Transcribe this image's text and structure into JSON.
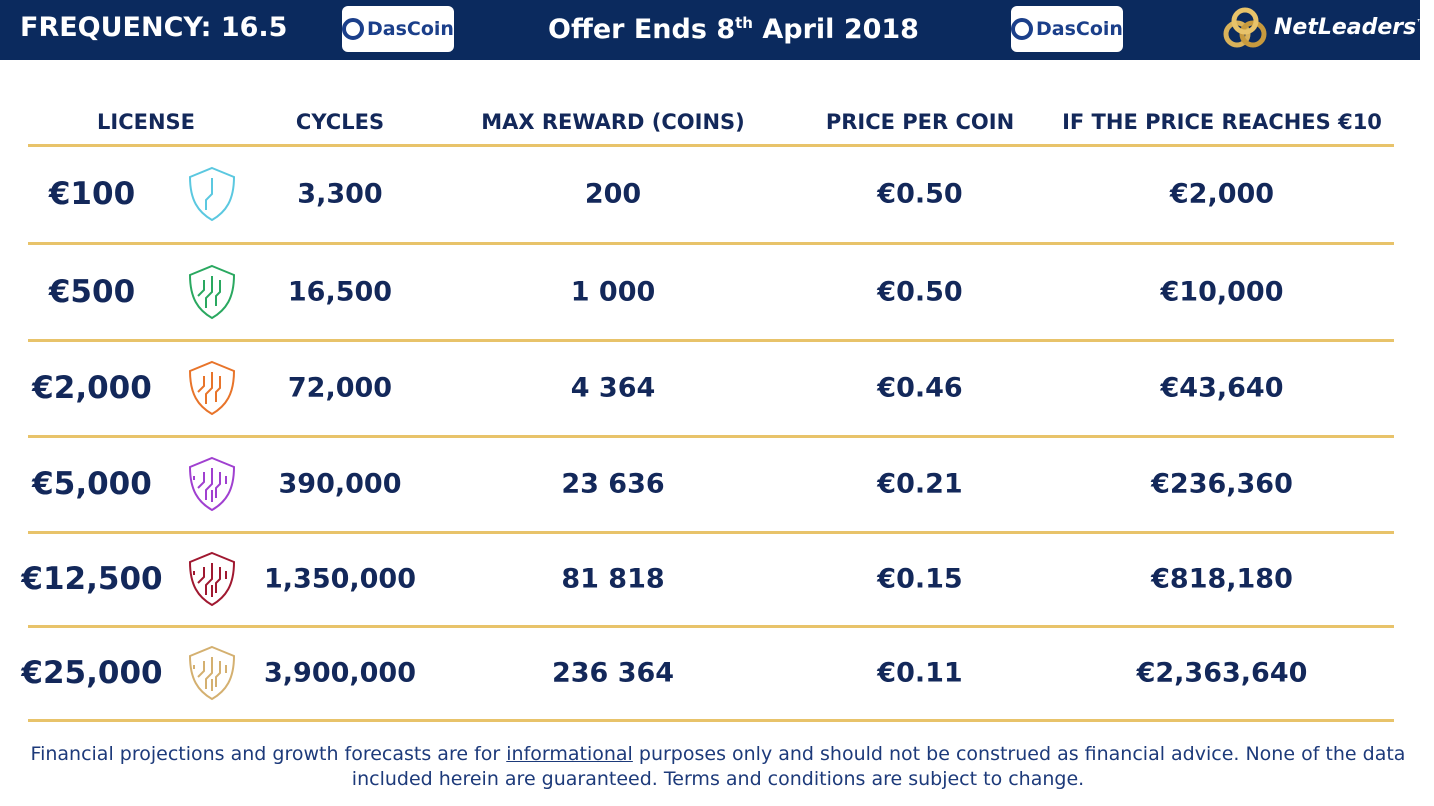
{
  "header": {
    "frequency": "FREQUENCY: 16.5",
    "logo_left": "DasCoin",
    "offer_prefix": "Offer Ends 8",
    "offer_sup": "th",
    "offer_suffix": "April 2018",
    "logo_right": "DasCoin",
    "brand": "NetLeaders",
    "brand_mark": "™"
  },
  "table": {
    "columns": [
      "LICENSE",
      "CYCLES",
      "MAX REWARD (COINS)",
      "PRICE PER COIN",
      "IF THE PRICE REACHES €10"
    ],
    "rows": [
      {
        "license": "€100",
        "icon_color": "#5bc8e0",
        "cycles": "3,300",
        "reward": "200",
        "price": "€0.50",
        "projection": "€2,000"
      },
      {
        "license": "€500",
        "icon_color": "#2aa860",
        "cycles": "16,500",
        "reward": "1 000",
        "price": "€0.50",
        "projection": "€10,000"
      },
      {
        "license": "€2,000",
        "icon_color": "#e8742a",
        "cycles": "72,000",
        "reward": "4 364",
        "price": "€0.46",
        "projection": "€43,640"
      },
      {
        "license": "€5,000",
        "icon_color": "#a040d0",
        "cycles": "390,000",
        "reward": "23 636",
        "price": "€0.21",
        "projection": "€236,360"
      },
      {
        "license": "€12,500",
        "icon_color": "#a01830",
        "cycles": "1,350,000",
        "reward": "81 818",
        "price": "€0.15",
        "projection": "€818,180"
      },
      {
        "license": "€25,000",
        "icon_color": "#d4b070",
        "cycles": "3,900,000",
        "reward": "236 364",
        "price": "€0.11",
        "projection": "€2,363,640"
      }
    ]
  },
  "footer": {
    "before": "Financial projections and growth forecasts are for",
    "link": "informational",
    "after": "purposes only and should not be construed as financial advice. None of the data included herein are guaranteed. Terms and conditions are subject to change."
  }
}
